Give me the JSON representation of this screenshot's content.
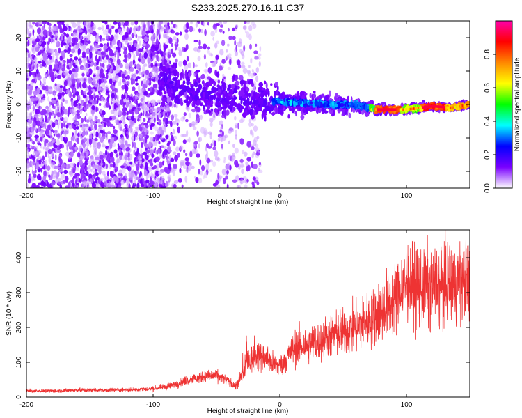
{
  "title": "S233.2025.270.16.11.C37",
  "chart_data": [
    {
      "type": "heatmap",
      "xlabel": "Height of straight line (km)",
      "ylabel": "Frequency (Hz)",
      "xlim": [
        -200,
        150
      ],
      "ylim": [
        -25,
        25
      ],
      "xticks": [
        -200,
        -100,
        0,
        100
      ],
      "yticks": [
        -20,
        -10,
        0,
        10,
        20
      ],
      "colorbar": {
        "label": "Normalized spectral amplitude",
        "range": [
          0,
          1
        ],
        "ticks": [
          0.0,
          0.2,
          0.4,
          0.6,
          0.8
        ],
        "colors": [
          "#ffffff",
          "#7a00ff",
          "#0000ff",
          "#00ffff",
          "#00ff00",
          "#ffff00",
          "#ff8800",
          "#ff0000",
          "#ff00aa"
        ]
      },
      "ridge": {
        "description_values": [
          [
            -90,
            7
          ],
          [
            -70,
            4
          ],
          [
            -50,
            2
          ],
          [
            -30,
            1.5
          ],
          [
            -10,
            1
          ],
          [
            0,
            1
          ],
          [
            10,
            0.5
          ],
          [
            20,
            0.5
          ],
          [
            40,
            0
          ],
          [
            60,
            0
          ],
          [
            75,
            -1.5
          ],
          [
            90,
            -1.5
          ],
          [
            100,
            -1.5
          ],
          [
            120,
            -0.5
          ],
          [
            135,
            -1
          ],
          [
            150,
            0
          ]
        ]
      }
    },
    {
      "type": "line",
      "xlabel": "Height of straight line (km)",
      "ylabel": "SNR (10 * v/v)",
      "xlim": [
        -200,
        150
      ],
      "ylim": [
        0,
        480
      ],
      "xticks": [
        -200,
        -100,
        0,
        100
      ],
      "yticks": [
        0,
        100,
        200,
        300,
        400
      ],
      "color": "#ee3333",
      "series": [
        {
          "name": "SNR",
          "x": [
            -200,
            -180,
            -160,
            -140,
            -120,
            -100,
            -90,
            -80,
            -70,
            -60,
            -50,
            -40,
            -35,
            -30,
            -25,
            -20,
            -15,
            -10,
            -5,
            0,
            5,
            10,
            20,
            30,
            40,
            50,
            60,
            70,
            80,
            90,
            95,
            100,
            105,
            110,
            120,
            130,
            140,
            150
          ],
          "values": [
            18,
            18,
            20,
            20,
            21,
            24,
            30,
            40,
            52,
            58,
            62,
            45,
            30,
            60,
            100,
            120,
            115,
            110,
            95,
            90,
            110,
            140,
            150,
            160,
            175,
            185,
            200,
            220,
            250,
            280,
            305,
            330,
            320,
            310,
            315,
            320,
            330,
            325
          ]
        }
      ]
    }
  ]
}
